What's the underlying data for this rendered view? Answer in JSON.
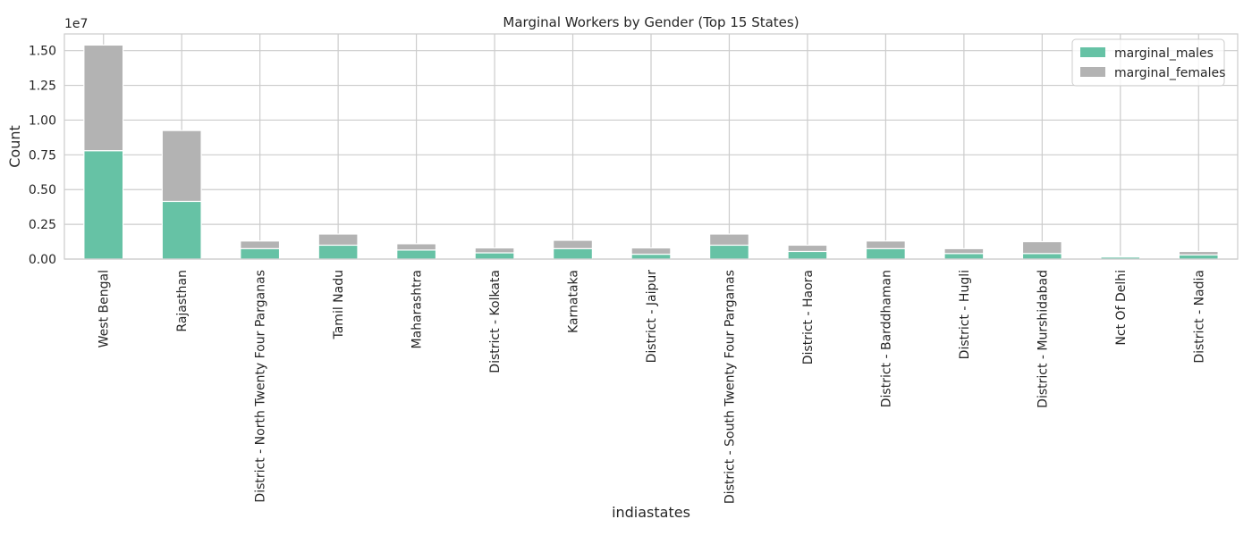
{
  "chart_data": {
    "type": "bar",
    "stacked": true,
    "title": "Marginal Workers by Gender (Top 15 States)",
    "xlabel": "indiastates",
    "ylabel": "Count",
    "y_scale_label": "1e7",
    "y_scale_factor": 10000000,
    "ylim": [
      0,
      16200000
    ],
    "yticks": [
      0,
      2500000,
      5000000,
      7500000,
      10000000,
      12500000,
      15000000
    ],
    "ytick_labels": [
      "0.00",
      "0.25",
      "0.50",
      "0.75",
      "1.00",
      "1.25",
      "1.50"
    ],
    "grid": true,
    "legend_position": "top-right",
    "categories": [
      "West Bengal",
      "Rajasthan",
      "District - North Twenty Four Parganas",
      "Tamil Nadu",
      "Maharashtra",
      "District - Kolkata",
      "Karnataka",
      "District - Jaipur",
      "District - South Twenty Four Parganas",
      "District - Haora",
      "District - Barddhaman",
      "District - Hugli",
      "District - Murshidabad",
      "Nct Of Delhi",
      "District - Nadia"
    ],
    "series": [
      {
        "name": "marginal_males",
        "color": "#66c2a5",
        "values": [
          7800000,
          4150000,
          750000,
          1000000,
          650000,
          450000,
          750000,
          350000,
          1000000,
          550000,
          750000,
          400000,
          400000,
          150000,
          300000
        ]
      },
      {
        "name": "marginal_females",
        "color": "#b3b3b3",
        "values": [
          7600000,
          5100000,
          550000,
          800000,
          450000,
          350000,
          600000,
          450000,
          800000,
          450000,
          550000,
          350000,
          850000,
          50000,
          250000
        ]
      }
    ]
  }
}
